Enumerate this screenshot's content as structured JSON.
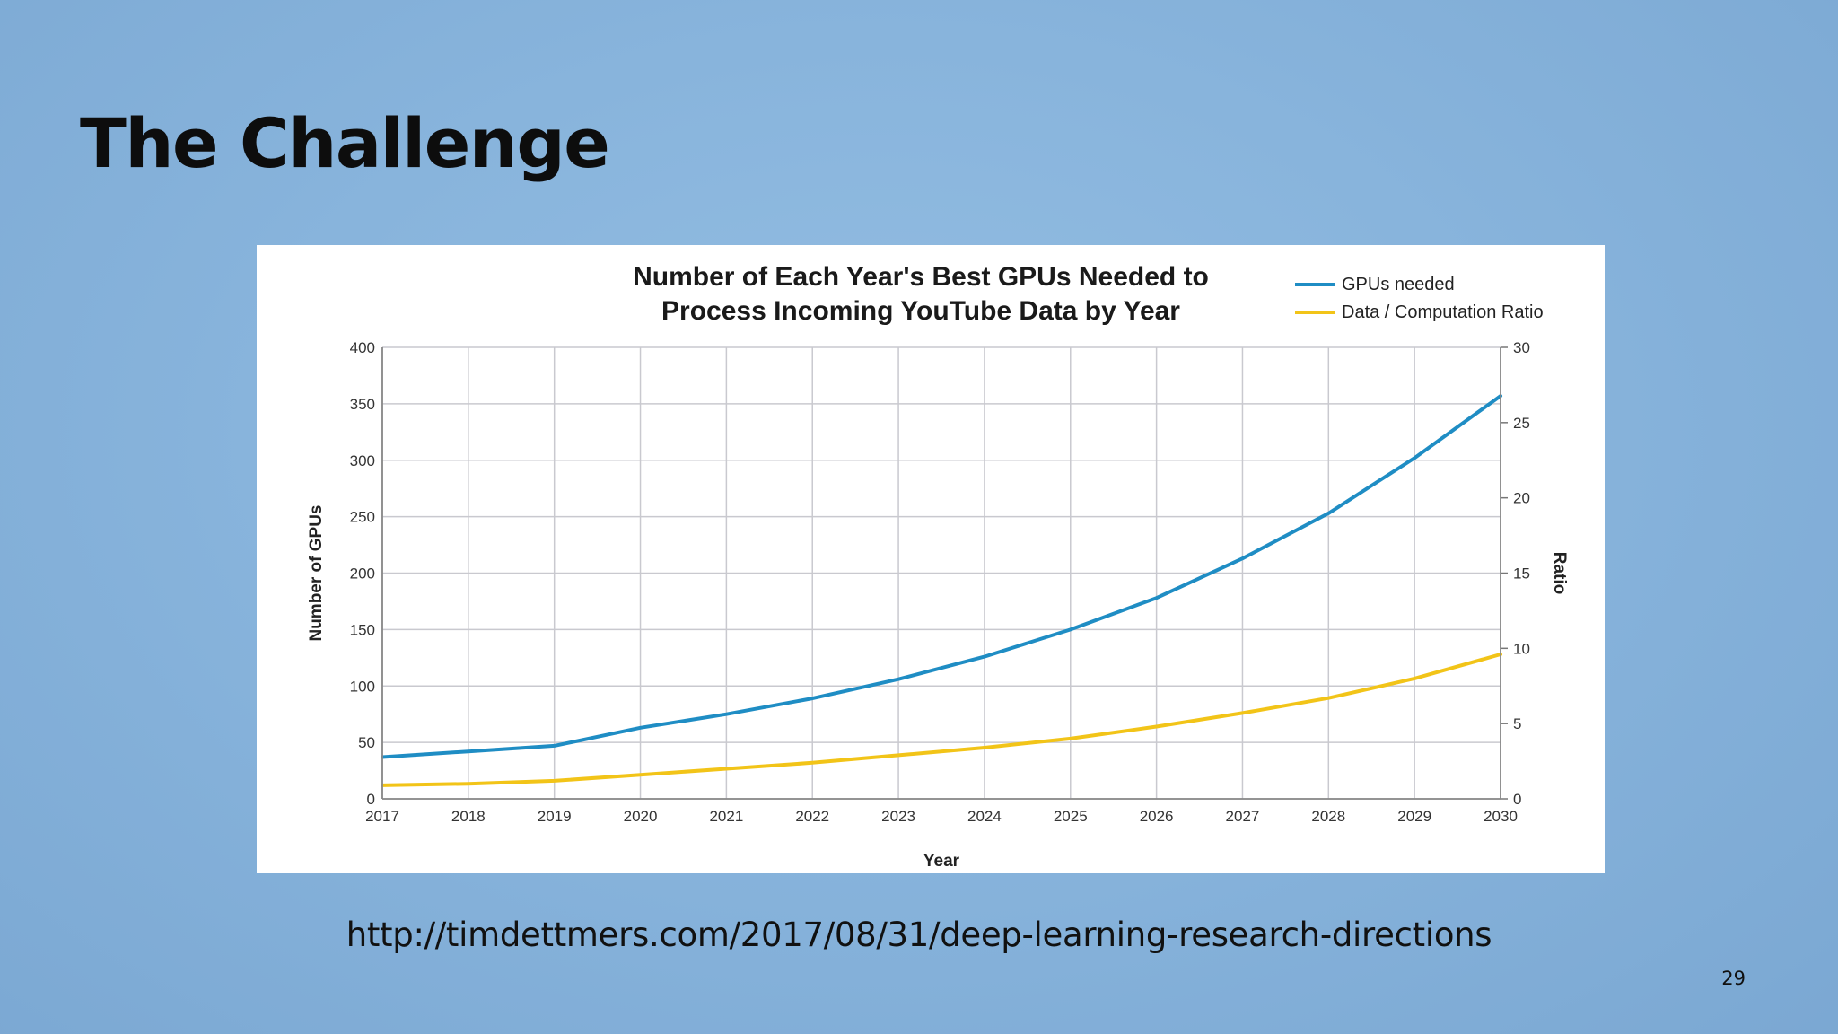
{
  "slide": {
    "title": "The Challenge",
    "source_url": "http://timdettmers.com/2017/08/31/deep-learning-research-directions",
    "page_number": "29"
  },
  "chart_data": {
    "type": "line",
    "title_lines": [
      "Number of Each Year's Best GPUs Needed to",
      "Process Incoming YouTube Data by Year"
    ],
    "xlabel": "Year",
    "ylabel_left": "Number of GPUs",
    "ylabel_right": "Ratio",
    "x": [
      2017,
      2018,
      2019,
      2020,
      2021,
      2022,
      2023,
      2024,
      2025,
      2026,
      2027,
      2028,
      2029,
      2030
    ],
    "x_ticks": [
      "2017",
      "2018",
      "2019",
      "2020",
      "2021",
      "2022",
      "2023",
      "2024",
      "2025",
      "2026",
      "2027",
      "2028",
      "2029",
      "2030"
    ],
    "ylim_left": [
      0,
      400
    ],
    "y_ticks_left": [
      "0",
      "50",
      "100",
      "150",
      "200",
      "250",
      "300",
      "350",
      "400"
    ],
    "ylim_right": [
      0,
      30
    ],
    "y_ticks_right": [
      "0",
      "5",
      "10",
      "15",
      "20",
      "25",
      "30"
    ],
    "grid": true,
    "legend_position": "top-right",
    "series": [
      {
        "name": "GPUs needed",
        "axis": "left",
        "color": "#1f8dc4",
        "values": [
          37,
          42,
          47,
          63,
          75,
          89,
          106,
          126,
          150,
          178,
          213,
          253,
          302,
          357
        ]
      },
      {
        "name": "Data / Computation Ratio",
        "axis": "right",
        "color": "#f2c418",
        "values": [
          0.9,
          1.0,
          1.2,
          1.6,
          2.0,
          2.4,
          2.9,
          3.4,
          4.0,
          4.8,
          5.7,
          6.7,
          8.0,
          9.6
        ]
      }
    ]
  }
}
